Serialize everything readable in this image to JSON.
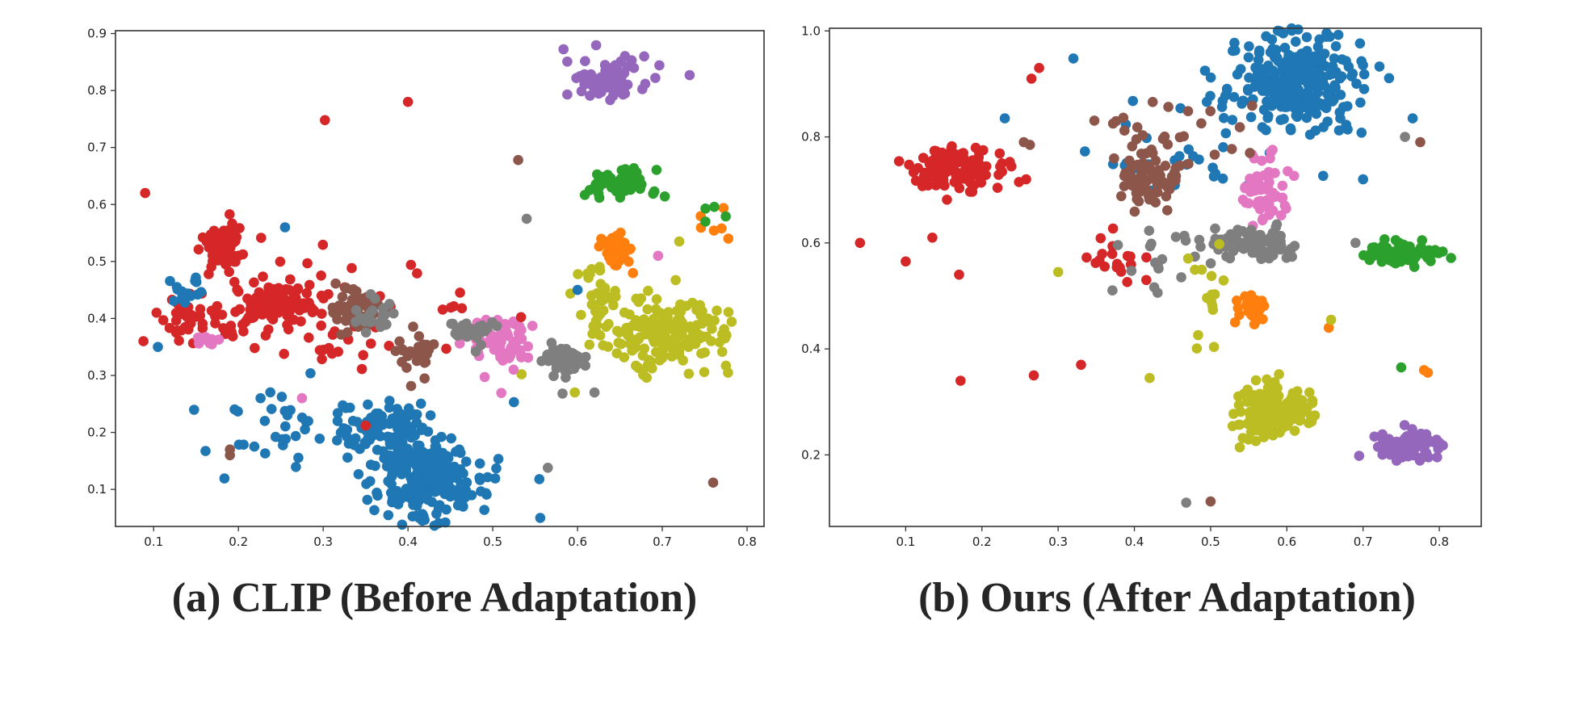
{
  "chart_data": [
    {
      "type": "scatter",
      "caption": "(a) CLIP (Before Adaptation)",
      "xticks": [
        "0.1",
        "0.2",
        "0.3",
        "0.4",
        "0.5",
        "0.6",
        "0.7",
        "0.8"
      ],
      "yticks": [
        "0.1",
        "0.2",
        "0.3",
        "0.4",
        "0.5",
        "0.6",
        "0.7",
        "0.8",
        "0.9"
      ],
      "xlim": [
        0.055,
        0.82
      ],
      "ylim": [
        0.035,
        0.905
      ],
      "grid": false,
      "colors": {
        "blue": "#1f77b4",
        "orange": "#ff7f0e",
        "green": "#2ca02c",
        "red": "#d62728",
        "purple": "#9467bd",
        "brown": "#8c564b",
        "pink": "#e377c2",
        "gray": "#7f7f7f",
        "olive": "#bcbd22"
      },
      "clusters": [
        {
          "color": "purple",
          "cx": 0.635,
          "cy": 0.82,
          "sx": 0.025,
          "sy": 0.018,
          "n": 90
        },
        {
          "color": "green",
          "cx": 0.645,
          "cy": 0.635,
          "sx": 0.025,
          "sy": 0.014,
          "n": 55
        },
        {
          "color": "orange",
          "cx": 0.648,
          "cy": 0.52,
          "sx": 0.01,
          "sy": 0.017,
          "n": 35
        },
        {
          "color": "olive",
          "cx": 0.705,
          "cy": 0.375,
          "sx": 0.04,
          "sy": 0.03,
          "n": 170
        },
        {
          "color": "olive",
          "cx": 0.625,
          "cy": 0.43,
          "sx": 0.014,
          "sy": 0.03,
          "n": 35
        },
        {
          "color": "gray",
          "cx": 0.585,
          "cy": 0.325,
          "sx": 0.012,
          "sy": 0.014,
          "n": 60
        },
        {
          "color": "pink",
          "cx": 0.51,
          "cy": 0.355,
          "sx": 0.02,
          "sy": 0.027,
          "n": 60
        },
        {
          "color": "blue",
          "cx": 0.425,
          "cy": 0.12,
          "sx": 0.03,
          "sy": 0.035,
          "n": 210
        },
        {
          "color": "blue",
          "cx": 0.37,
          "cy": 0.2,
          "sx": 0.025,
          "sy": 0.028,
          "n": 100
        },
        {
          "color": "blue",
          "cx": 0.26,
          "cy": 0.2,
          "sx": 0.05,
          "sy": 0.04,
          "n": 35
        },
        {
          "color": "red",
          "cx": 0.18,
          "cy": 0.525,
          "sx": 0.012,
          "sy": 0.02,
          "n": 70
        },
        {
          "color": "red",
          "cx": 0.245,
          "cy": 0.425,
          "sx": 0.025,
          "sy": 0.016,
          "n": 110
        },
        {
          "color": "red",
          "cx": 0.33,
          "cy": 0.41,
          "sx": 0.075,
          "sy": 0.06,
          "n": 50
        },
        {
          "color": "brown",
          "cx": 0.335,
          "cy": 0.415,
          "sx": 0.015,
          "sy": 0.02,
          "n": 50
        },
        {
          "color": "brown",
          "cx": 0.41,
          "cy": 0.34,
          "sx": 0.01,
          "sy": 0.02,
          "n": 30
        },
        {
          "color": "gray",
          "cx": 0.36,
          "cy": 0.4,
          "sx": 0.012,
          "sy": 0.015,
          "n": 25
        },
        {
          "color": "gray",
          "cx": 0.475,
          "cy": 0.38,
          "sx": 0.015,
          "sy": 0.012,
          "n": 25
        },
        {
          "color": "red",
          "cx": 0.15,
          "cy": 0.4,
          "sx": 0.02,
          "sy": 0.02,
          "n": 40
        },
        {
          "color": "blue",
          "cx": 0.14,
          "cy": 0.45,
          "sx": 0.01,
          "sy": 0.015,
          "n": 15
        },
        {
          "color": "pink",
          "cx": 0.165,
          "cy": 0.365,
          "sx": 0.008,
          "sy": 0.008,
          "n": 10
        },
        {
          "color": "orange",
          "cx": 0.745,
          "cy": 0.57,
          "sx": 0.02,
          "sy": 0.025,
          "n": 6
        },
        {
          "color": "green",
          "cx": 0.755,
          "cy": 0.59,
          "sx": 0.01,
          "sy": 0.01,
          "n": 4
        }
      ],
      "points": [
        {
          "x": 0.09,
          "y": 0.62,
          "color": "red"
        },
        {
          "x": 0.302,
          "y": 0.748,
          "color": "red"
        },
        {
          "x": 0.4,
          "y": 0.78,
          "color": "red"
        },
        {
          "x": 0.53,
          "y": 0.678,
          "color": "brown"
        },
        {
          "x": 0.088,
          "y": 0.36,
          "color": "red"
        },
        {
          "x": 0.105,
          "y": 0.35,
          "color": "blue"
        },
        {
          "x": 0.19,
          "y": 0.17,
          "color": "brown"
        },
        {
          "x": 0.19,
          "y": 0.16,
          "color": "brown"
        },
        {
          "x": 0.35,
          "y": 0.212,
          "color": "red"
        },
        {
          "x": 0.525,
          "y": 0.253,
          "color": "blue"
        },
        {
          "x": 0.555,
          "y": 0.118,
          "color": "blue"
        },
        {
          "x": 0.565,
          "y": 0.138,
          "color": "gray"
        },
        {
          "x": 0.556,
          "y": 0.05,
          "color": "blue"
        },
        {
          "x": 0.76,
          "y": 0.112,
          "color": "brown"
        },
        {
          "x": 0.255,
          "y": 0.56,
          "color": "blue"
        },
        {
          "x": 0.54,
          "y": 0.575,
          "color": "gray"
        },
        {
          "x": 0.6,
          "y": 0.45,
          "color": "blue"
        },
        {
          "x": 0.72,
          "y": 0.535,
          "color": "olive"
        },
        {
          "x": 0.695,
          "y": 0.51,
          "color": "pink"
        },
        {
          "x": 0.62,
          "y": 0.27,
          "color": "gray"
        },
        {
          "x": 0.275,
          "y": 0.26,
          "color": "pink"
        }
      ]
    },
    {
      "type": "scatter",
      "caption": "(b) Ours (After Adaptation)",
      "xticks": [
        "0.1",
        "0.2",
        "0.3",
        "0.4",
        "0.5",
        "0.6",
        "0.7",
        "0.8"
      ],
      "yticks": [
        "0.2",
        "0.4",
        "0.6",
        "0.8",
        "1.0"
      ],
      "xlim": [
        0.0,
        0.855
      ],
      "ylim": [
        0.065,
        1.005
      ],
      "grid": false,
      "colors": {
        "blue": "#1f77b4",
        "orange": "#ff7f0e",
        "green": "#2ca02c",
        "red": "#d62728",
        "purple": "#9467bd",
        "brown": "#8c564b",
        "pink": "#e377c2",
        "gray": "#7f7f7f",
        "olive": "#bcbd22"
      },
      "clusters": [
        {
          "color": "blue",
          "cx": 0.615,
          "cy": 0.905,
          "sx": 0.045,
          "sy": 0.045,
          "n": 260
        },
        {
          "color": "blue",
          "cx": 0.48,
          "cy": 0.79,
          "sx": 0.06,
          "sy": 0.05,
          "n": 35
        },
        {
          "color": "red",
          "cx": 0.17,
          "cy": 0.74,
          "sx": 0.03,
          "sy": 0.02,
          "n": 120
        },
        {
          "color": "brown",
          "cx": 0.42,
          "cy": 0.72,
          "sx": 0.02,
          "sy": 0.025,
          "n": 70
        },
        {
          "color": "pink",
          "cx": 0.575,
          "cy": 0.695,
          "sx": 0.015,
          "sy": 0.03,
          "n": 60
        },
        {
          "color": "gray",
          "cx": 0.55,
          "cy": 0.6,
          "sx": 0.03,
          "sy": 0.014,
          "n": 85
        },
        {
          "color": "green",
          "cx": 0.755,
          "cy": 0.58,
          "sx": 0.028,
          "sy": 0.012,
          "n": 70
        },
        {
          "color": "orange",
          "cx": 0.555,
          "cy": 0.475,
          "sx": 0.01,
          "sy": 0.013,
          "n": 35
        },
        {
          "color": "olive",
          "cx": 0.575,
          "cy": 0.28,
          "sx": 0.025,
          "sy": 0.025,
          "n": 150
        },
        {
          "color": "purple",
          "cx": 0.755,
          "cy": 0.215,
          "sx": 0.022,
          "sy": 0.015,
          "n": 75
        },
        {
          "color": "red",
          "cx": 0.38,
          "cy": 0.55,
          "sx": 0.03,
          "sy": 0.03,
          "n": 20
        },
        {
          "color": "brown",
          "cx": 0.44,
          "cy": 0.8,
          "sx": 0.05,
          "sy": 0.04,
          "n": 25
        },
        {
          "color": "gray",
          "cx": 0.43,
          "cy": 0.58,
          "sx": 0.03,
          "sy": 0.04,
          "n": 15
        },
        {
          "color": "olive",
          "cx": 0.5,
          "cy": 0.5,
          "sx": 0.01,
          "sy": 0.06,
          "n": 15
        }
      ],
      "points": [
        {
          "x": 0.04,
          "y": 0.6,
          "color": "red"
        },
        {
          "x": 0.1,
          "y": 0.565,
          "color": "red"
        },
        {
          "x": 0.135,
          "y": 0.61,
          "color": "red"
        },
        {
          "x": 0.17,
          "y": 0.54,
          "color": "red"
        },
        {
          "x": 0.172,
          "y": 0.34,
          "color": "red"
        },
        {
          "x": 0.268,
          "y": 0.35,
          "color": "red"
        },
        {
          "x": 0.33,
          "y": 0.37,
          "color": "red"
        },
        {
          "x": 0.42,
          "y": 0.345,
          "color": "olive"
        },
        {
          "x": 0.3,
          "y": 0.545,
          "color": "olive"
        },
        {
          "x": 0.468,
          "y": 0.11,
          "color": "gray"
        },
        {
          "x": 0.5,
          "y": 0.112,
          "color": "brown"
        },
        {
          "x": 0.75,
          "y": 0.365,
          "color": "green"
        },
        {
          "x": 0.78,
          "y": 0.36,
          "color": "orange"
        },
        {
          "x": 0.785,
          "y": 0.355,
          "color": "orange"
        },
        {
          "x": 0.655,
          "y": 0.44,
          "color": "orange"
        },
        {
          "x": 0.658,
          "y": 0.455,
          "color": "olive"
        },
        {
          "x": 0.275,
          "y": 0.93,
          "color": "red"
        },
        {
          "x": 0.265,
          "y": 0.91,
          "color": "red"
        },
        {
          "x": 0.32,
          "y": 0.948,
          "color": "blue"
        },
        {
          "x": 0.23,
          "y": 0.835,
          "color": "blue"
        },
        {
          "x": 0.263,
          "y": 0.785,
          "color": "brown"
        },
        {
          "x": 0.255,
          "y": 0.79,
          "color": "brown"
        },
        {
          "x": 0.765,
          "y": 0.835,
          "color": "blue"
        },
        {
          "x": 0.755,
          "y": 0.8,
          "color": "gray"
        },
        {
          "x": 0.775,
          "y": 0.79,
          "color": "brown"
        },
        {
          "x": 0.7,
          "y": 0.72,
          "color": "blue"
        },
        {
          "x": 0.69,
          "y": 0.6,
          "color": "gray"
        }
      ]
    }
  ]
}
